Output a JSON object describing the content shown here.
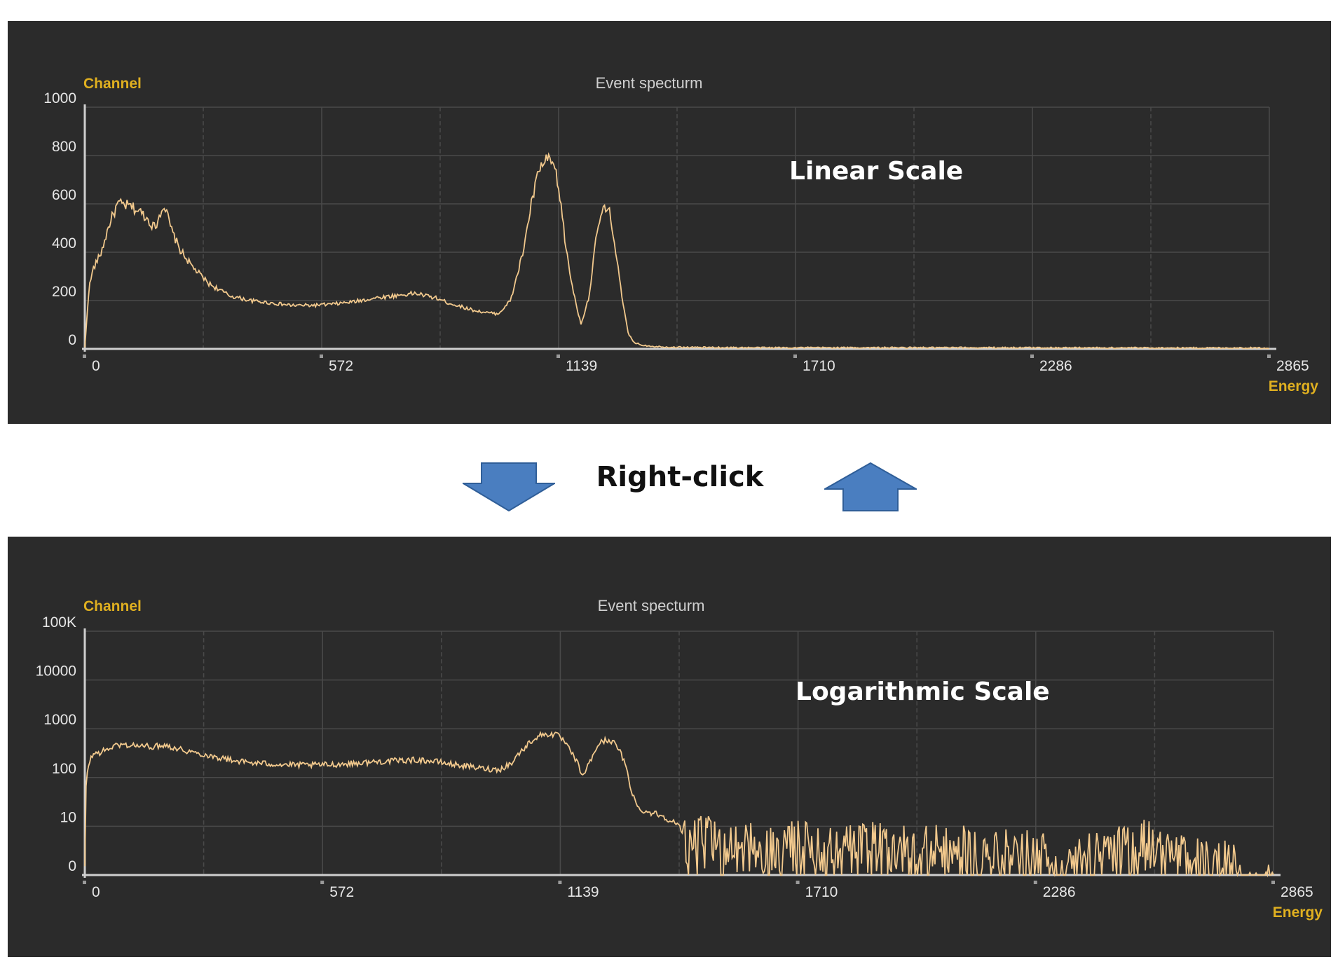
{
  "middle": {
    "label": "Right-click"
  },
  "colors": {
    "panel_bg": "#2b2b2b",
    "trace": "#f2c98d",
    "axis_title": "#e0b020",
    "grid": "#4a4a4a",
    "tick_text": "#e6e6e6",
    "arrow": "#4a7ec0"
  },
  "icons": {
    "down": "arrow-down-icon",
    "up": "arrow-up-icon"
  },
  "chart_data": [
    {
      "type": "line",
      "title": "Event specturm",
      "ylabel": "Channel",
      "xlabel": "Energy",
      "annotation": "Linear Scale",
      "yscale": "linear",
      "xlim": [
        0,
        2865
      ],
      "ylim": [
        0,
        1000
      ],
      "x_ticks": [
        "0",
        "572",
        "1139",
        "1710",
        "2286",
        "2865"
      ],
      "y_ticks": [
        "0",
        "200",
        "400",
        "600",
        "800",
        "1000"
      ],
      "grid": true,
      "series": [
        {
          "x": [
            0,
            10,
            20,
            40,
            60,
            80,
            110,
            140,
            170,
            190,
            200,
            210,
            230,
            260,
            300,
            350,
            400,
            450,
            500,
            550,
            600,
            650,
            700,
            750,
            800,
            850,
            880,
            910,
            940,
            970,
            1000,
            1030,
            1060,
            1080,
            1100,
            1120,
            1135,
            1150,
            1165,
            1180,
            1200,
            1220,
            1240,
            1255,
            1270,
            1285,
            1300,
            1315,
            1330,
            1350,
            1380,
            1420,
            1500,
            1600,
            1710,
            2000,
            2286,
            2600,
            2865
          ],
          "y": [
            5,
            250,
            330,
            400,
            520,
            600,
            590,
            560,
            500,
            600,
            550,
            490,
            410,
            340,
            270,
            220,
            200,
            190,
            180,
            180,
            185,
            195,
            210,
            220,
            230,
            210,
            190,
            175,
            160,
            150,
            145,
            200,
            400,
            600,
            750,
            780,
            760,
            620,
            400,
            250,
            100,
            220,
            500,
            580,
            560,
            400,
            200,
            60,
            25,
            15,
            10,
            7,
            6,
            5,
            5,
            5,
            5,
            4,
            4
          ]
        }
      ]
    },
    {
      "type": "line",
      "title": "Event specturm",
      "ylabel": "Channel",
      "xlabel": "Energy",
      "annotation": "Logarithmic Scale",
      "yscale": "log",
      "xlim": [
        0,
        2865
      ],
      "ylim": [
        1,
        100000
      ],
      "x_ticks": [
        "0",
        "572",
        "1139",
        "1710",
        "2286",
        "2865"
      ],
      "y_ticks": [
        "0",
        "10",
        "100",
        "1000",
        "10000",
        "100K"
      ],
      "grid": true,
      "series": [
        {
          "x": [
            0,
            10,
            20,
            40,
            60,
            80,
            110,
            140,
            170,
            190,
            200,
            210,
            230,
            260,
            300,
            350,
            400,
            450,
            500,
            550,
            600,
            650,
            700,
            750,
            800,
            850,
            880,
            910,
            940,
            970,
            1000,
            1030,
            1060,
            1080,
            1100,
            1120,
            1135,
            1150,
            1165,
            1180,
            1200,
            1220,
            1240,
            1255,
            1270,
            1285,
            1300,
            1315,
            1330,
            1350,
            1380,
            1420,
            1460,
            1500,
            1550,
            1600,
            1650,
            1710,
            1800,
            1900,
            2000,
            2100,
            2200,
            2286,
            2400,
            2500,
            2550,
            2600,
            2650,
            2700,
            2750,
            2800,
            2865
          ],
          "y": [
            1,
            200,
            300,
            330,
            400,
            470,
            460,
            440,
            430,
            470,
            450,
            420,
            380,
            330,
            280,
            230,
            200,
            190,
            180,
            180,
            185,
            195,
            210,
            220,
            230,
            210,
            190,
            175,
            160,
            150,
            145,
            200,
            400,
            600,
            750,
            780,
            760,
            620,
            400,
            250,
            100,
            220,
            500,
            580,
            560,
            400,
            200,
            60,
            25,
            20,
            18,
            12,
            4,
            5,
            3,
            4,
            3,
            4,
            3,
            4,
            3,
            3,
            2.5,
            2.5,
            2,
            3,
            4,
            3,
            2,
            1.5,
            1.5,
            1,
            1
          ]
        }
      ]
    }
  ]
}
